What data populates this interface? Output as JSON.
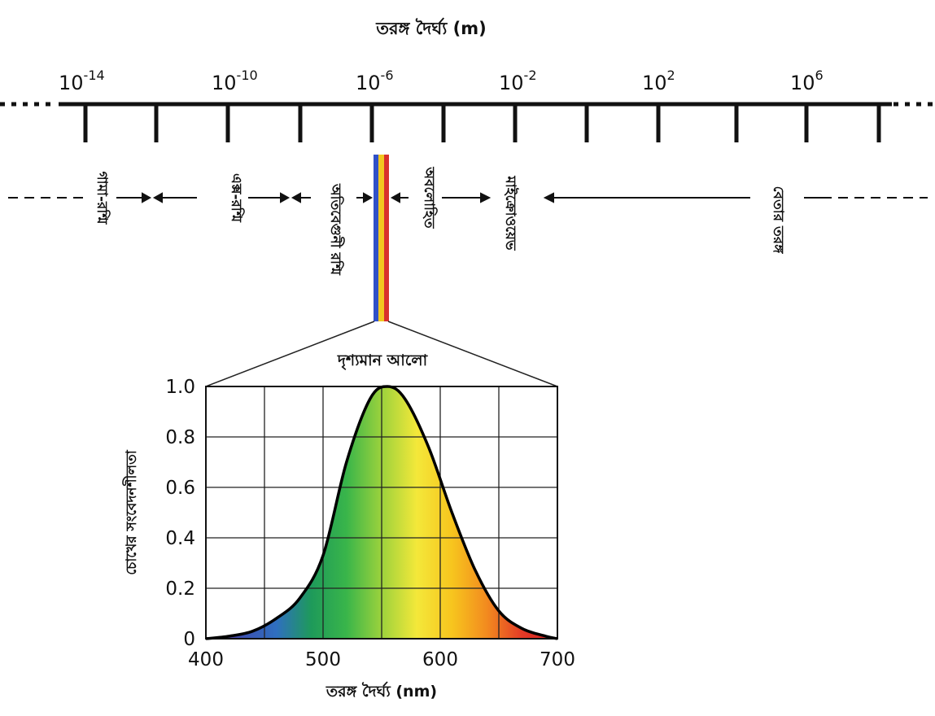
{
  "spectrum": {
    "axis_title": "তরঙ্গ দৈর্ঘ্য (m)",
    "scale_labels": [
      {
        "base": "10",
        "exp": "-14"
      },
      {
        "base": "10",
        "exp": "-10"
      },
      {
        "base": "10",
        "exp": "-6"
      },
      {
        "base": "10",
        "exp": "-2"
      },
      {
        "base": "10",
        "exp": "2"
      },
      {
        "base": "10",
        "exp": "6"
      }
    ],
    "bands": [
      "গামা-রশ্মি",
      "এক্স-রশ্মি",
      "অতিবেগুনী রশ্মি",
      "অবলোহিত",
      "মাইক্রোওয়েভ",
      "বেতার তরঙ্গ"
    ],
    "visible_colors": [
      "#3050c8",
      "#f2c61f",
      "#d8302c"
    ]
  },
  "visible": {
    "label": "দৃশ্যমান আলো"
  },
  "chart_data": {
    "type": "line",
    "title": "",
    "xlabel": "তরঙ্গ দৈর্ঘ্য (nm)",
    "ylabel": "চোখের সংবেদনশীলতা",
    "xlim": [
      400,
      700
    ],
    "ylim": [
      0,
      1.0
    ],
    "x_ticks": [
      "400",
      "500",
      "600",
      "700"
    ],
    "y_ticks": [
      "0",
      "0.2",
      "0.4",
      "0.6",
      "0.8",
      "1.0"
    ],
    "grid": true,
    "series": [
      {
        "x": [
          400,
          420,
          440,
          460,
          480,
          500,
          520,
          540,
          555,
          570,
          590,
          610,
          630,
          650,
          670,
          690,
          700
        ],
        "y": [
          0.0,
          0.01,
          0.03,
          0.08,
          0.16,
          0.33,
          0.7,
          0.95,
          1.0,
          0.95,
          0.76,
          0.5,
          0.27,
          0.11,
          0.04,
          0.01,
          0.0
        ]
      }
    ],
    "fill_gradient": [
      "#7a2a8c",
      "#3c4fb0",
      "#2f6fc0",
      "#1e9a5a",
      "#39b54a",
      "#9cd23c",
      "#f4e83a",
      "#f7c51e",
      "#f28a1f",
      "#e33a26",
      "#d41e22"
    ]
  }
}
